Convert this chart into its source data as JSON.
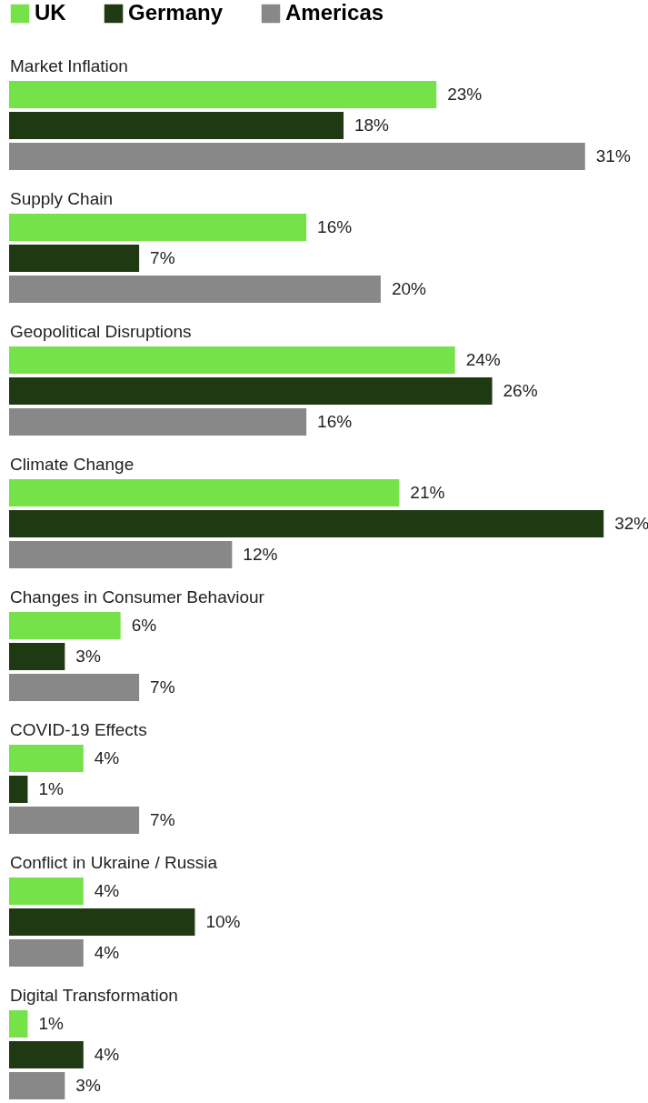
{
  "chart_data": {
    "type": "bar",
    "orientation": "horizontal",
    "legend": "top left",
    "categories": [
      "Market Inflation",
      "Supply Chain",
      "Geopolitical Disruptions",
      "Climate Change",
      "Changes in Consumer Behaviour",
      "COVID-19 Effects",
      "Conflict in Ukraine / Russia",
      "Digital Transformation"
    ],
    "series": [
      {
        "name": "UK",
        "color": "#76e24a",
        "values": [
          23,
          16,
          24,
          21,
          6,
          4,
          4,
          1
        ],
        "value_labels": [
          "23%",
          "16%",
          "24%",
          "21%",
          "6%",
          "4%",
          "4%",
          "1%"
        ]
      },
      {
        "name": "Germany",
        "color": "#1f3a13",
        "values": [
          18,
          7,
          26,
          32,
          3,
          1,
          10,
          4
        ],
        "value_labels": [
          "18%",
          "7%",
          "26%",
          "32%",
          "3%",
          "1%",
          "10%",
          "4%"
        ]
      },
      {
        "name": "Americas",
        "color": "#888888",
        "values": [
          31,
          20,
          16,
          12,
          7,
          7,
          4,
          3
        ],
        "value_labels": [
          "31%",
          "20%",
          "16%",
          "12%",
          "7%",
          "7%",
          "4%",
          "3%"
        ]
      }
    ]
  }
}
